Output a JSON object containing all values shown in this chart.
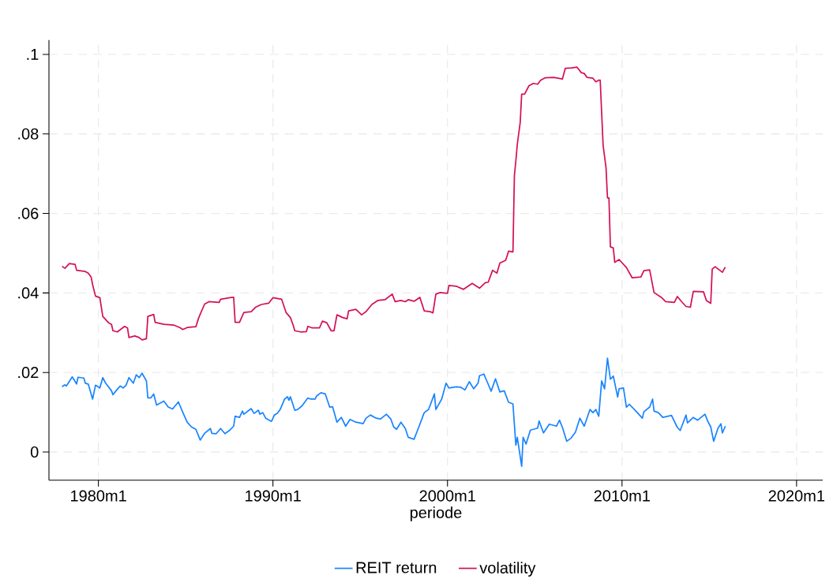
{
  "chart_data": {
    "type": "line",
    "xlabel": "periode",
    "xlim": [
      "1977-03",
      "2021-07"
    ],
    "ylim": [
      -0.0071,
      0.1036
    ],
    "xticks": [
      {
        "value": "1980-01",
        "label": "1980m1"
      },
      {
        "value": "1990-01",
        "label": "1990m1"
      },
      {
        "value": "2000-01",
        "label": "2000m1"
      },
      {
        "value": "2010-01",
        "label": "2010m1"
      },
      {
        "value": "2020-01",
        "label": "2020m1"
      }
    ],
    "yticks": [
      0,
      {
        "value": 0.02,
        "label": ".02"
      },
      {
        "value": 0.04,
        "label": ".04"
      },
      {
        "value": 0.06,
        "label": ".06"
      },
      {
        "value": 0.08,
        "label": ".08"
      },
      {
        "value": 0.1,
        "label": ".1"
      }
    ],
    "grid": true,
    "legend": "bottom",
    "series": [
      {
        "name": "REIT return",
        "color": "#1a85ff",
        "x": [
          "1977-12",
          "1978-02",
          "1978-03",
          "1978-07",
          "1978-10",
          "1978-11",
          "1979-03",
          "1979-04",
          "1979-06",
          "1979-09",
          "1979-11",
          "1980-02",
          "1980-04",
          "1980-06",
          "1980-10",
          "1980-11",
          "1981-02",
          "1981-04",
          "1981-06",
          "1981-08",
          "1981-10",
          "1982-01",
          "1982-03",
          "1982-05",
          "1982-07",
          "1982-10",
          "1982-11",
          "1983-01",
          "1983-03",
          "1983-05",
          "1983-10",
          "1984-01",
          "1984-04",
          "1984-08",
          "1984-11",
          "1985-02",
          "1985-05",
          "1985-08",
          "1985-11",
          "1986-02",
          "1986-06",
          "1986-07",
          "1986-10",
          "1987-01",
          "1987-04",
          "1987-07",
          "1987-10",
          "1987-11",
          "1988-02",
          "1988-04",
          "1988-05",
          "1988-10",
          "1988-12",
          "1989-03",
          "1989-04",
          "1989-06",
          "1989-08",
          "1989-12",
          "1990-02",
          "1990-04",
          "1990-06",
          "1990-09",
          "1990-11",
          "1990-12",
          "1991-01",
          "1991-04",
          "1991-06",
          "1991-09",
          "1992-01",
          "1992-03",
          "1992-06",
          "1992-07",
          "1992-10",
          "1993-01",
          "1993-04",
          "1993-06",
          "1993-09",
          "1993-12",
          "1994-03",
          "1994-06",
          "1994-10",
          "1995-02",
          "1995-03",
          "1995-05",
          "1995-08",
          "1995-12",
          "1996-03",
          "1996-07",
          "1996-10",
          "1996-12",
          "1997-02",
          "1997-05",
          "1997-08",
          "1997-10",
          "1998-02",
          "1998-05",
          "1998-09",
          "1998-12",
          "1999-04",
          "1999-05",
          "1999-09",
          "1999-12",
          "2000-02",
          "2000-07",
          "2000-10",
          "2001-01",
          "2001-04",
          "2001-07",
          "2001-10",
          "2001-11",
          "2002-02",
          "2002-04",
          "2002-07",
          "2002-10",
          "2003-01",
          "2003-04",
          "2003-07",
          "2003-10",
          "2003-12",
          "2004-01",
          "2004-04",
          "2004-05",
          "2004-07",
          "2004-10",
          "2005-03",
          "2005-04",
          "2005-07",
          "2005-11",
          "2006-04",
          "2006-06",
          "2006-08",
          "2006-11",
          "2007-02",
          "2007-05",
          "2007-08",
          "2007-11",
          "2008-03",
          "2008-05",
          "2008-07",
          "2008-09",
          "2008-11",
          "2009-01",
          "2009-03",
          "2009-05",
          "2009-07",
          "2009-10",
          "2009-11",
          "2010-02",
          "2010-04",
          "2010-06",
          "2010-10",
          "2011-03",
          "2011-04",
          "2011-08",
          "2011-10",
          "2011-11",
          "2012-02",
          "2012-05",
          "2012-11",
          "2013-03",
          "2013-05",
          "2013-09",
          "2013-10",
          "2014-02",
          "2014-05",
          "2014-10",
          "2014-12",
          "2015-02",
          "2015-04",
          "2015-07",
          "2015-09",
          "2015-10",
          "2015-12"
        ],
        "values": [
          0.0164,
          0.0169,
          0.0166,
          0.0189,
          0.0171,
          0.0188,
          0.0186,
          0.0173,
          0.0171,
          0.0133,
          0.0168,
          0.0161,
          0.0187,
          0.0173,
          0.0154,
          0.0144,
          0.0158,
          0.0166,
          0.0161,
          0.0168,
          0.0187,
          0.0173,
          0.0194,
          0.0187,
          0.0198,
          0.0179,
          0.0136,
          0.0136,
          0.0146,
          0.0118,
          0.0128,
          0.0113,
          0.0108,
          0.0126,
          0.01,
          0.0075,
          0.0063,
          0.0057,
          0.003,
          0.0047,
          0.0059,
          0.0047,
          0.0046,
          0.0059,
          0.0046,
          0.0054,
          0.0065,
          0.009,
          0.0087,
          0.0103,
          0.0095,
          0.0109,
          0.0097,
          0.0105,
          0.0095,
          0.0099,
          0.0085,
          0.0077,
          0.0093,
          0.0097,
          0.0107,
          0.0133,
          0.0139,
          0.013,
          0.0139,
          0.0105,
          0.0107,
          0.0116,
          0.0136,
          0.0133,
          0.0133,
          0.0141,
          0.0149,
          0.0146,
          0.0113,
          0.0114,
          0.0075,
          0.0087,
          0.0065,
          0.0082,
          0.0075,
          0.0072,
          0.0071,
          0.0085,
          0.0093,
          0.0085,
          0.0083,
          0.0095,
          0.0083,
          0.0063,
          0.0057,
          0.0075,
          0.0059,
          0.0037,
          0.0032,
          0.006,
          0.0099,
          0.0107,
          0.0146,
          0.0107,
          0.0133,
          0.0173,
          0.0161,
          0.0164,
          0.0163,
          0.0156,
          0.0177,
          0.0159,
          0.0173,
          0.0192,
          0.0196,
          0.0179,
          0.0153,
          0.0184,
          0.0151,
          0.0154,
          0.0125,
          0.0121,
          0.0017,
          0.0037,
          -0.0036,
          0.0037,
          0.002,
          0.0055,
          0.006,
          0.0078,
          0.0048,
          0.007,
          0.0065,
          0.008,
          0.0062,
          0.0027,
          0.0035,
          0.005,
          0.0085,
          0.0065,
          0.0107,
          0.0099,
          0.0107,
          0.009,
          0.0179,
          0.0159,
          0.0236,
          0.0183,
          0.0191,
          0.0138,
          0.0159,
          0.0161,
          0.0113,
          0.012,
          0.0105,
          0.0085,
          0.0101,
          0.0113,
          0.0133,
          0.0103,
          0.0099,
          0.0087,
          0.0092,
          0.0062,
          0.0054,
          0.0093,
          0.0073,
          0.0087,
          0.008,
          0.0095,
          0.0077,
          0.0063,
          0.0027,
          0.006,
          0.0071,
          0.0048,
          0.0065
        ]
      },
      {
        "name": "volatility",
        "color": "#d41159",
        "x": [
          "1977-12",
          "1978-02",
          "1978-05",
          "1978-09",
          "1978-10",
          "1979-04",
          "1979-06",
          "1979-08",
          "1979-09",
          "1979-11",
          "1980-02",
          "1980-04",
          "1980-08",
          "1980-10",
          "1980-11",
          "1981-02",
          "1981-07",
          "1981-09",
          "1981-10",
          "1982-02",
          "1982-05",
          "1982-07",
          "1982-10",
          "1982-11",
          "1983-03",
          "1983-04",
          "1983-10",
          "1984-05",
          "1984-09",
          "1984-11",
          "1985-02",
          "1985-08",
          "1985-10",
          "1986-02",
          "1986-05",
          "1986-12",
          "1987-01",
          "1987-09",
          "1987-10",
          "1987-11",
          "1988-02",
          "1988-05",
          "1988-10",
          "1989-01",
          "1989-05",
          "1989-10",
          "1990-01",
          "1990-07",
          "1990-10",
          "1991-01",
          "1991-03",
          "1991-04",
          "1991-08",
          "1991-12",
          "1992-01",
          "1992-04",
          "1992-09",
          "1992-11",
          "1993-02",
          "1993-05",
          "1993-07",
          "1993-09",
          "1994-01",
          "1994-04",
          "1994-05",
          "1994-10",
          "1995-02",
          "1995-05",
          "1995-09",
          "1996-01",
          "1996-06",
          "1996-11",
          "1997-01",
          "1997-05",
          "1997-08",
          "1997-10",
          "1998-02",
          "1998-06",
          "1998-09",
          "1999-01",
          "1999-03",
          "1999-05",
          "1999-08",
          "2000-01",
          "2000-02",
          "2000-07",
          "2000-12",
          "2001-06",
          "2001-11",
          "2002-03",
          "2002-05",
          "2002-08",
          "2002-11",
          "2003-01",
          "2003-05",
          "2003-07",
          "2003-10",
          "2003-11",
          "2003-12",
          "2004-01",
          "2004-03",
          "2004-04",
          "2004-06",
          "2004-09",
          "2004-12",
          "2005-03",
          "2005-05",
          "2005-08",
          "2006-02",
          "2006-08",
          "2006-10",
          "2007-02",
          "2007-06",
          "2007-09",
          "2007-11",
          "2008-01",
          "2008-05",
          "2008-07",
          "2008-09",
          "2008-10",
          "2008-12",
          "2009-02",
          "2009-03",
          "2009-04",
          "2009-05",
          "2009-07",
          "2009-08",
          "2009-11",
          "2010-04",
          "2010-08",
          "2011-02",
          "2011-04",
          "2011-08",
          "2011-11",
          "2012-04",
          "2012-07",
          "2013-01",
          "2013-03",
          "2013-06",
          "2013-09",
          "2013-12",
          "2014-02",
          "2014-09",
          "2014-11",
          "2015-02",
          "2015-03",
          "2015-05",
          "2015-10",
          "2015-12"
        ],
        "values": [
          0.0467,
          0.0462,
          0.0474,
          0.0472,
          0.0457,
          0.0454,
          0.045,
          0.044,
          0.0421,
          0.0392,
          0.0388,
          0.0341,
          0.0325,
          0.0321,
          0.0305,
          0.0302,
          0.0316,
          0.0312,
          0.0288,
          0.0292,
          0.0288,
          0.0282,
          0.0285,
          0.0341,
          0.0346,
          0.0326,
          0.0321,
          0.0319,
          0.0313,
          0.0308,
          0.0313,
          0.0315,
          0.0338,
          0.0372,
          0.0378,
          0.0376,
          0.0384,
          0.0389,
          0.0389,
          0.0326,
          0.0326,
          0.0351,
          0.0353,
          0.0364,
          0.0371,
          0.0374,
          0.0388,
          0.0384,
          0.0351,
          0.0338,
          0.0318,
          0.0305,
          0.0302,
          0.0303,
          0.0316,
          0.0312,
          0.0312,
          0.0329,
          0.0325,
          0.0305,
          0.0305,
          0.0345,
          0.0338,
          0.0335,
          0.0355,
          0.0359,
          0.0345,
          0.0353,
          0.0371,
          0.0381,
          0.0383,
          0.0397,
          0.0378,
          0.0381,
          0.0378,
          0.0383,
          0.0379,
          0.0389,
          0.0355,
          0.0353,
          0.035,
          0.0397,
          0.0401,
          0.0399,
          0.0419,
          0.0417,
          0.0409,
          0.0424,
          0.0412,
          0.0426,
          0.0427,
          0.0457,
          0.045,
          0.0475,
          0.0482,
          0.0505,
          0.0503,
          0.0695,
          0.0732,
          0.0774,
          0.0829,
          0.09,
          0.09,
          0.0921,
          0.0927,
          0.0925,
          0.0935,
          0.0941,
          0.0942,
          0.0938,
          0.0965,
          0.0966,
          0.0968,
          0.0954,
          0.0952,
          0.0942,
          0.094,
          0.0931,
          0.0935,
          0.0935,
          0.0771,
          0.0715,
          0.0639,
          0.0639,
          0.0516,
          0.0513,
          0.0477,
          0.0484,
          0.0464,
          0.0438,
          0.044,
          0.0456,
          0.0458,
          0.0401,
          0.0389,
          0.0378,
          0.0376,
          0.0391,
          0.0378,
          0.0366,
          0.0364,
          0.0404,
          0.0403,
          0.0381,
          0.0374,
          0.046,
          0.0466,
          0.0452,
          0.0465
        ]
      }
    ]
  }
}
